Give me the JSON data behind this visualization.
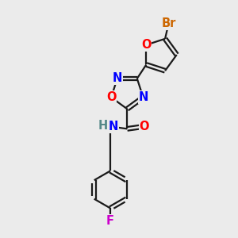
{
  "background_color": "#ebebeb",
  "bond_color": "#1a1a1a",
  "bond_width": 1.6,
  "atom_colors": {
    "O": "#ff0000",
    "N": "#0000ff",
    "Br": "#cc6600",
    "F": "#cc00cc",
    "H": "#558888",
    "C": "#1a1a1a"
  },
  "font_size": 10.5
}
